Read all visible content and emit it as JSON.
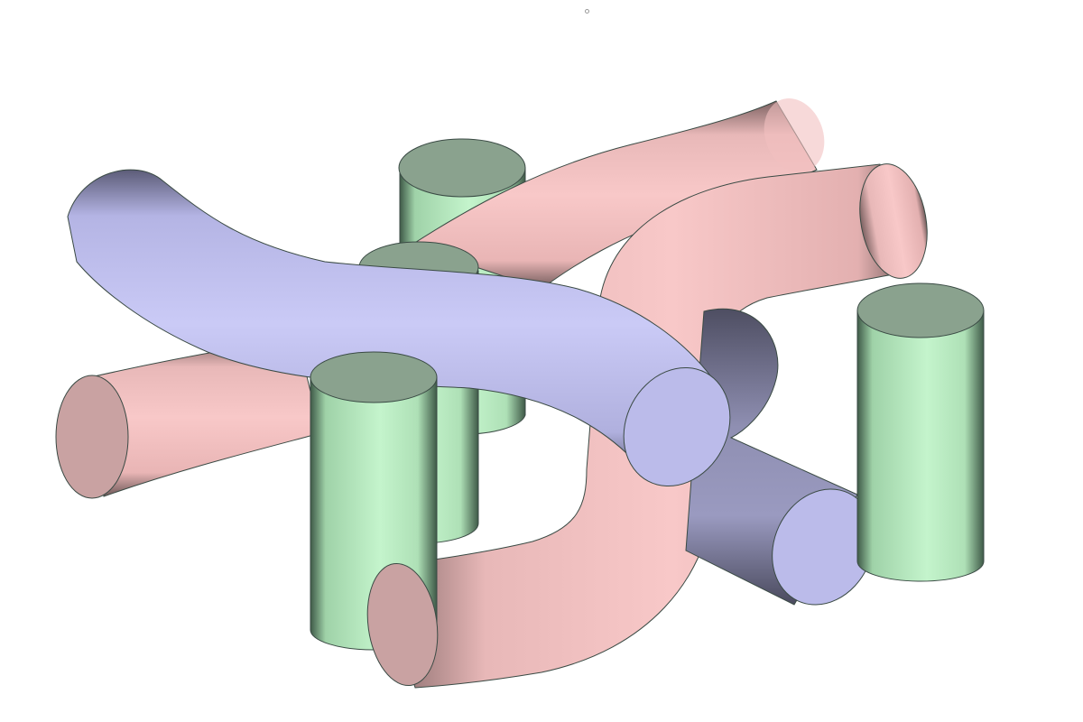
{
  "scene": {
    "description_colors": {
      "background": "#ffffff",
      "outline": "#3a4a44",
      "pink_light": "#f6c4c4",
      "pink_mid": "#e2aeae",
      "pink_end": "#c9a2a2",
      "blue_light": "#c9c9f6",
      "blue_mid": "#a9a9d8",
      "blue_end": "#bbbbea",
      "green_light": "#c4f4cc",
      "green_dark": "#5f7a66",
      "green_top": "#8aa28e"
    },
    "objects": [
      "pink-tube-top",
      "pink-tube-front",
      "pink-tube-left",
      "blue-tube-main",
      "blue-tube-right",
      "green-cylinder-back",
      "green-cylinder-middle",
      "green-cylinder-front",
      "green-cylinder-right"
    ]
  }
}
